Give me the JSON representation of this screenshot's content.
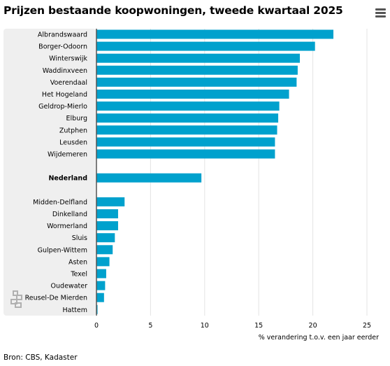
{
  "chart_data": {
    "type": "bar",
    "orientation": "horizontal",
    "title": "Prijzen bestaande koopwoningen, tweede kwartaal 2025",
    "xlabel": "% verandering t.o.v. een jaar eerder",
    "ylabel": "",
    "xlim": [
      0,
      25
    ],
    "xticks": [
      0,
      5,
      10,
      15,
      20,
      25
    ],
    "grid": "vertical",
    "source": "Bron: CBS, Kadaster",
    "highlight_color": "#00a1cd",
    "bar_color": "#00a1cd",
    "label_panel_color": "#efefef",
    "groups": [
      {
        "categories": [
          "Albrandswaard",
          "Borger-Odoorn",
          "Winterswijk",
          "Waddinxveen",
          "Voerendaal",
          "Het Hogeland",
          "Geldrop-Mierlo",
          "Elburg",
          "Zutphen",
          "Leusden",
          "Wijdemeren"
        ],
        "values": [
          21.9,
          20.2,
          18.8,
          18.6,
          18.5,
          17.8,
          16.9,
          16.8,
          16.7,
          16.5,
          16.5
        ],
        "bold": false
      },
      {
        "categories": [
          "Nederland"
        ],
        "values": [
          9.7
        ],
        "bold": true
      },
      {
        "categories": [
          "Midden-Delfland",
          "Dinkelland",
          "Wormerland",
          "Sluis",
          "Gulpen-Wittem",
          "Asten",
          "Texel",
          "Oudewater",
          "Reusel-De Mierden",
          "Hattem"
        ],
        "values": [
          2.6,
          2.0,
          2.0,
          1.7,
          1.5,
          1.2,
          0.9,
          0.8,
          0.7,
          0.1
        ],
        "bold": false
      }
    ]
  },
  "logo": {
    "name": "cbs-logo",
    "color": "#b0b0b0"
  },
  "menu": {
    "icon": "hamburger-menu-icon"
  }
}
